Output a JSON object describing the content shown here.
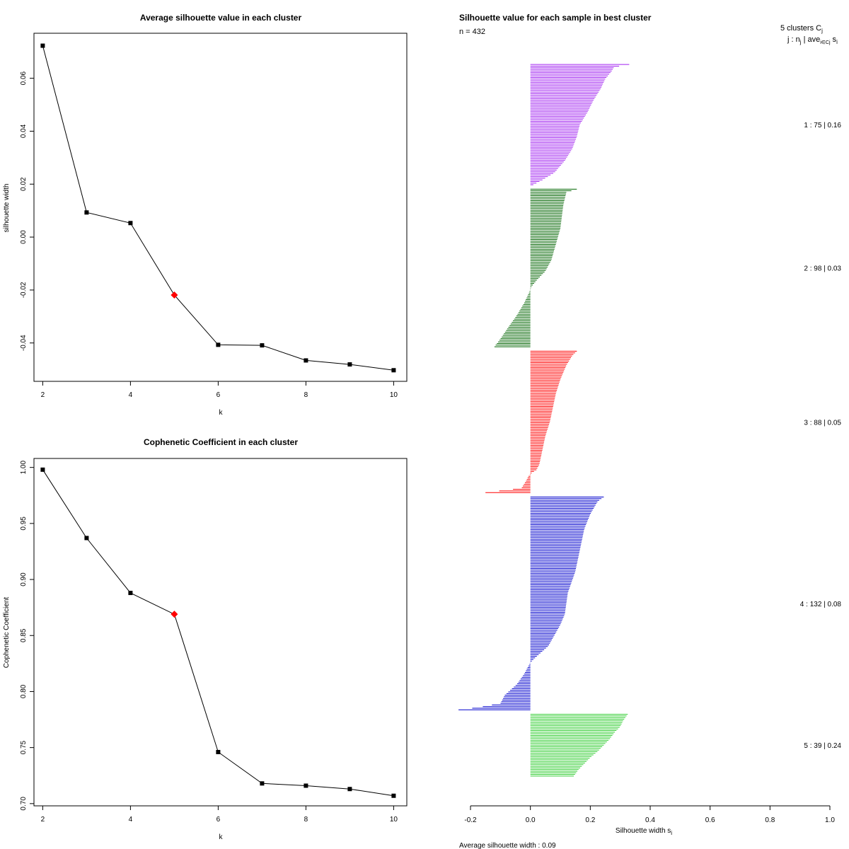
{
  "chart_data": [
    {
      "type": "line",
      "title": "Average silhouette value in each cluster",
      "xlabel": "k",
      "ylabel": "silhouette width",
      "x": [
        2,
        3,
        4,
        5,
        6,
        7,
        8,
        9,
        10
      ],
      "values": [
        0.0723,
        0.0093,
        0.0053,
        -0.0219,
        -0.0407,
        -0.0409,
        -0.0466,
        -0.0481,
        -0.0503
      ],
      "highlight_x": 5,
      "highlight_color": "#ff0000",
      "xlim": [
        1.8,
        10.3
      ],
      "ylim": [
        -0.0545,
        0.077
      ],
      "xticks": [
        2,
        4,
        6,
        8,
        10
      ],
      "xtick_labels": [
        "2",
        "4",
        "6",
        "8",
        "10"
      ],
      "yticks": [
        -0.04,
        -0.02,
        0.0,
        0.02,
        0.04,
        0.06
      ],
      "ytick_labels": [
        "-0.04",
        "-0.02",
        "0.00",
        "0.02",
        "0.04",
        "0.06"
      ]
    },
    {
      "type": "line",
      "title": "Cophenetic Coefficient in each cluster",
      "xlabel": "k",
      "ylabel": "Cophenetic Coefficient",
      "x": [
        2,
        3,
        4,
        5,
        6,
        7,
        8,
        9,
        10
      ],
      "values": [
        0.998,
        0.937,
        0.888,
        0.869,
        0.746,
        0.718,
        0.716,
        0.713,
        0.707
      ],
      "highlight_x": 5,
      "highlight_color": "#ff0000",
      "xlim": [
        1.8,
        10.3
      ],
      "ylim": [
        0.698,
        1.008
      ],
      "xticks": [
        2,
        4,
        6,
        8,
        10
      ],
      "xtick_labels": [
        "2",
        "4",
        "6",
        "8",
        "10"
      ],
      "yticks": [
        0.7,
        0.75,
        0.8,
        0.85,
        0.9,
        0.95,
        1.0
      ],
      "ytick_labels": [
        "0.70",
        "0.75",
        "0.80",
        "0.85",
        "0.90",
        "0.95",
        "1.00"
      ]
    },
    {
      "type": "bar",
      "orientation": "horizontal",
      "title": "Silhouette value for each sample in best cluster",
      "n_label": "n = 432",
      "header_line1": "5  clusters  C",
      "header_line1_sub": "j",
      "header_line2": "j :  n",
      "header_line2_sub": "j",
      "header_line2_rest": " | ave",
      "header_line2_sub2": "i∈Cj",
      "header_line2_end": "  s",
      "header_line2_sub3": "i",
      "xlabel": "Silhouette width s",
      "xlabel_sub": "i",
      "footer": "Average silhouette width :  0.09",
      "xlim": [
        -0.2,
        1.0
      ],
      "xticks": [
        -0.2,
        0.0,
        0.2,
        0.4,
        0.6,
        0.8,
        1.0
      ],
      "xtick_labels": [
        "-0.2",
        "0.0",
        "0.2",
        "0.4",
        "0.6",
        "0.8",
        "1.0"
      ],
      "clusters": [
        {
          "id": 1,
          "n": 75,
          "avg": 0.16,
          "label": "1 :   75  |  0.16",
          "color": "#a020f0",
          "profile": [
            [
              0,
              0.33
            ],
            [
              0.02,
              0.28
            ],
            [
              0.06,
              0.27
            ],
            [
              0.12,
              0.25
            ],
            [
              0.2,
              0.235
            ],
            [
              0.3,
              0.21
            ],
            [
              0.4,
              0.19
            ],
            [
              0.5,
              0.165
            ],
            [
              0.6,
              0.155
            ],
            [
              0.7,
              0.14
            ],
            [
              0.8,
              0.115
            ],
            [
              0.9,
              0.08
            ],
            [
              0.96,
              0.04
            ],
            [
              1,
              0.01
            ]
          ]
        },
        {
          "id": 2,
          "n": 98,
          "avg": 0.03,
          "label": "2 :   98  |  0.03",
          "color": "#006400",
          "profile": [
            [
              0,
              0.155
            ],
            [
              0.02,
              0.12
            ],
            [
              0.1,
              0.11
            ],
            [
              0.25,
              0.1
            ],
            [
              0.35,
              0.085
            ],
            [
              0.45,
              0.07
            ],
            [
              0.52,
              0.05
            ],
            [
              0.58,
              0.02
            ],
            [
              0.62,
              0.003
            ],
            [
              0.66,
              -0.005
            ],
            [
              0.72,
              -0.02
            ],
            [
              0.8,
              -0.045
            ],
            [
              0.88,
              -0.075
            ],
            [
              0.95,
              -0.1
            ],
            [
              1,
              -0.12
            ]
          ]
        },
        {
          "id": 3,
          "n": 88,
          "avg": 0.05,
          "label": "3 :   88  |  0.05",
          "color": "#ff0000",
          "profile": [
            [
              0,
              0.155
            ],
            [
              0.03,
              0.14
            ],
            [
              0.1,
              0.12
            ],
            [
              0.2,
              0.1
            ],
            [
              0.3,
              0.085
            ],
            [
              0.4,
              0.075
            ],
            [
              0.5,
              0.065
            ],
            [
              0.6,
              0.05
            ],
            [
              0.7,
              0.04
            ],
            [
              0.8,
              0.03
            ],
            [
              0.84,
              0.02
            ],
            [
              0.86,
              0.005
            ],
            [
              0.88,
              -0.005
            ],
            [
              0.92,
              -0.015
            ],
            [
              0.97,
              -0.03
            ],
            [
              1,
              -0.15
            ]
          ]
        },
        {
          "id": 4,
          "n": 132,
          "avg": 0.08,
          "label": "4 :   132  |  0.08",
          "color": "#0000cd",
          "profile": [
            [
              0,
              0.245
            ],
            [
              0.02,
              0.225
            ],
            [
              0.08,
              0.2
            ],
            [
              0.15,
              0.18
            ],
            [
              0.25,
              0.165
            ],
            [
              0.35,
              0.15
            ],
            [
              0.45,
              0.125
            ],
            [
              0.55,
              0.115
            ],
            [
              0.6,
              0.1
            ],
            [
              0.65,
              0.08
            ],
            [
              0.7,
              0.06
            ],
            [
              0.75,
              0.02
            ],
            [
              0.77,
              0.005
            ],
            [
              0.79,
              -0.005
            ],
            [
              0.83,
              -0.02
            ],
            [
              0.88,
              -0.045
            ],
            [
              0.93,
              -0.085
            ],
            [
              0.97,
              -0.1
            ],
            [
              0.99,
              -0.18
            ],
            [
              1,
              -0.24
            ]
          ]
        },
        {
          "id": 5,
          "n": 39,
          "avg": 0.24,
          "label": "5 :   39  |  0.24",
          "color": "#32cd32",
          "profile": [
            [
              0,
              0.325
            ],
            [
              0.1,
              0.31
            ],
            [
              0.2,
              0.3
            ],
            [
              0.3,
              0.28
            ],
            [
              0.4,
              0.265
            ],
            [
              0.5,
              0.245
            ],
            [
              0.6,
              0.225
            ],
            [
              0.7,
              0.2
            ],
            [
              0.8,
              0.18
            ],
            [
              0.9,
              0.16
            ],
            [
              1,
              0.145
            ]
          ]
        }
      ]
    }
  ]
}
